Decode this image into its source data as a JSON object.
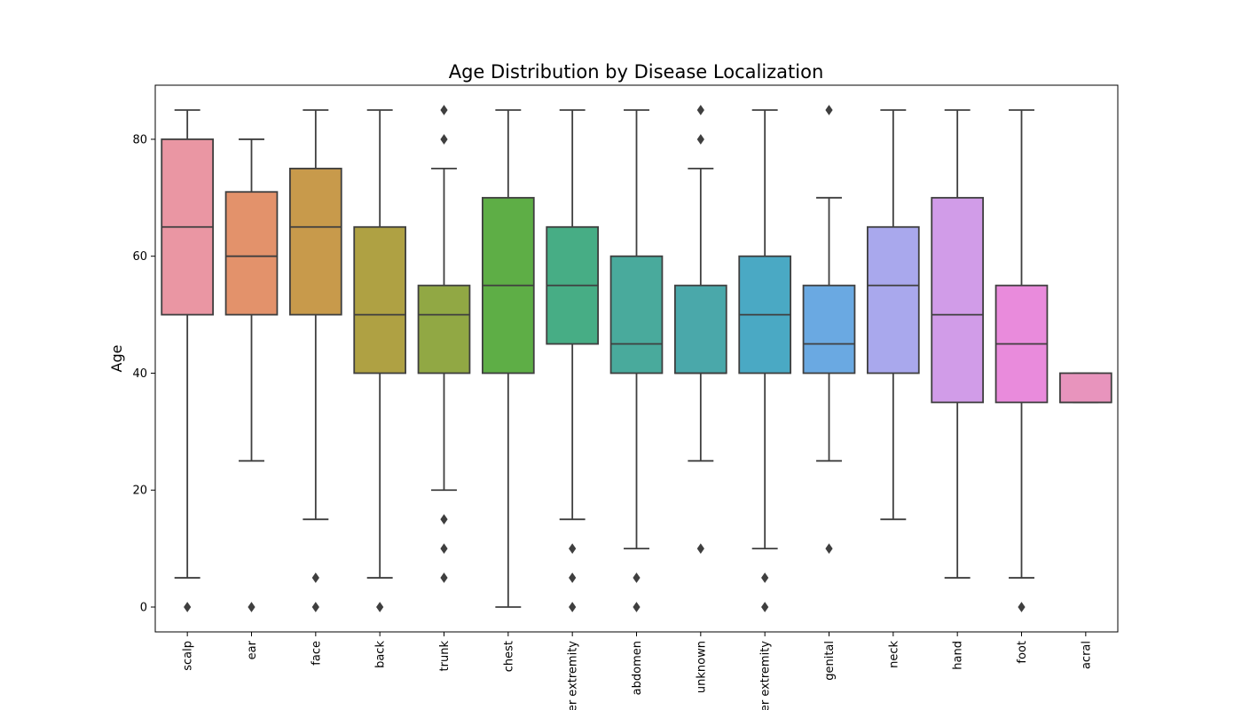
{
  "chart_data": {
    "type": "box",
    "title": "Age Distribution by Disease Localization",
    "xlabel": "",
    "ylabel": "Age",
    "ylim": [
      -4.25,
      89.25
    ],
    "yticks": [
      0,
      20,
      40,
      60,
      80
    ],
    "grid": false,
    "categories": [
      "scalp",
      "ear",
      "face",
      "back",
      "trunk",
      "chest",
      "upper extremity",
      "abdomen",
      "unknown",
      "lower extremity",
      "genital",
      "neck",
      "hand",
      "foot",
      "acral"
    ],
    "colors": [
      "#ea96a3",
      "#e3926b",
      "#c89a4b",
      "#afa143",
      "#91a844",
      "#5eae46",
      "#47ad85",
      "#49aa9c",
      "#4aa8aa",
      "#4aa9c4",
      "#6aa9e2",
      "#a9a8ed",
      "#d19ce8",
      "#e98bdc",
      "#e894bd"
    ],
    "boxes": [
      {
        "category": "scalp",
        "whisker_low": 5,
        "q1": 50,
        "median": 65,
        "q3": 80,
        "whisker_high": 85,
        "outliers": [
          0
        ]
      },
      {
        "category": "ear",
        "whisker_low": 25,
        "q1": 50,
        "median": 60,
        "q3": 71,
        "whisker_high": 80,
        "outliers": [
          0
        ]
      },
      {
        "category": "face",
        "whisker_low": 15,
        "q1": 50,
        "median": 65,
        "q3": 75,
        "whisker_high": 85,
        "outliers": [
          5,
          0
        ]
      },
      {
        "category": "back",
        "whisker_low": 5,
        "q1": 40,
        "median": 50,
        "q3": 65,
        "whisker_high": 85,
        "outliers": [
          0
        ]
      },
      {
        "category": "trunk",
        "whisker_low": 20,
        "q1": 40,
        "median": 50,
        "q3": 55,
        "whisker_high": 75,
        "outliers": [
          85,
          80,
          15,
          10,
          5
        ]
      },
      {
        "category": "chest",
        "whisker_low": 0,
        "q1": 40,
        "median": 55,
        "q3": 70,
        "whisker_high": 85,
        "outliers": []
      },
      {
        "category": "upper extremity",
        "whisker_low": 15,
        "q1": 45,
        "median": 55,
        "q3": 65,
        "whisker_high": 85,
        "outliers": [
          10,
          5,
          0
        ]
      },
      {
        "category": "abdomen",
        "whisker_low": 10,
        "q1": 40,
        "median": 45,
        "q3": 60,
        "whisker_high": 85,
        "outliers": [
          5,
          0
        ]
      },
      {
        "category": "unknown",
        "whisker_low": 25,
        "q1": 40,
        "median": 40,
        "q3": 55,
        "whisker_high": 75,
        "outliers": [
          85,
          80,
          10
        ]
      },
      {
        "category": "lower extremity",
        "whisker_low": 10,
        "q1": 40,
        "median": 50,
        "q3": 60,
        "whisker_high": 85,
        "outliers": [
          5,
          0
        ]
      },
      {
        "category": "genital",
        "whisker_low": 25,
        "q1": 40,
        "median": 45,
        "q3": 55,
        "whisker_high": 70,
        "outliers": [
          85,
          10
        ]
      },
      {
        "category": "neck",
        "whisker_low": 15,
        "q1": 40,
        "median": 55,
        "q3": 65,
        "whisker_high": 85,
        "outliers": []
      },
      {
        "category": "hand",
        "whisker_low": 5,
        "q1": 35,
        "median": 50,
        "q3": 70,
        "whisker_high": 85,
        "outliers": []
      },
      {
        "category": "foot",
        "whisker_low": 5,
        "q1": 35,
        "median": 45,
        "q3": 55,
        "whisker_high": 85,
        "outliers": [
          0
        ]
      },
      {
        "category": "acral",
        "whisker_low": 35,
        "q1": 35,
        "median": 35,
        "q3": 40,
        "whisker_high": 40,
        "outliers": []
      }
    ]
  }
}
